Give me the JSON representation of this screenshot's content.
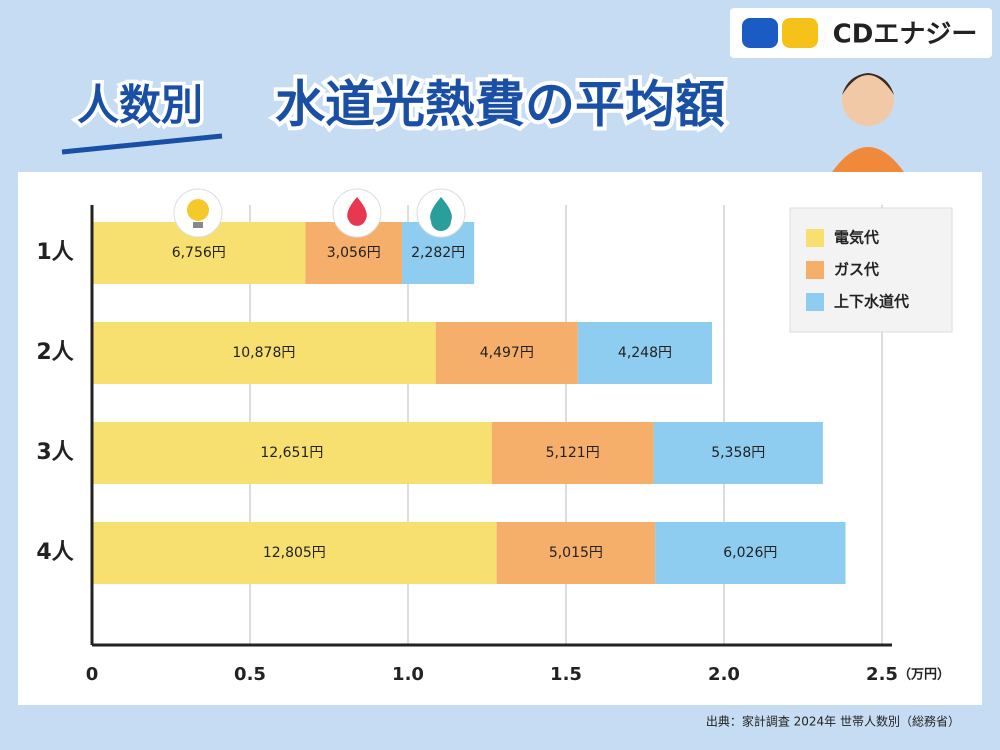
{
  "brand": "CDエナジー",
  "chart_data": {
    "type": "stacked_barh",
    "title": "人数別",
    "subtitle": "水道光熱費の平均額",
    "x_unit_label": "（万円）",
    "source": "出典：家計調査 2024年 世帯人数別（総務省）",
    "categories": [
      "1人",
      "2人",
      "3人",
      "4人"
    ],
    "series": [
      {
        "name": "電気代",
        "color": "#f7e070",
        "values": [
          0.6756,
          1.0878,
          1.2651,
          1.2805
        ],
        "value_labels": [
          "6,756円",
          "10,878円",
          "12,651円",
          "12,805円"
        ]
      },
      {
        "name": "ガス代",
        "color": "#f6ae6b",
        "values": [
          0.3056,
          0.4497,
          0.5121,
          0.5015
        ],
        "value_labels": [
          "3,056円",
          "4,497円",
          "5,121円",
          "5,015円"
        ]
      },
      {
        "name": "上下水道代",
        "color": "#8ecdf0",
        "values": [
          0.2282,
          0.4248,
          0.5358,
          0.6026
        ],
        "value_labels": [
          "2,282円",
          "4,248円",
          "5,358円",
          "6,026円"
        ]
      }
    ],
    "xlim": [
      0,
      2.5
    ],
    "xticks": [
      0,
      0.5,
      {
        "value": 1,
        "label": "1.0"
      },
      1.5,
      {
        "value": 2,
        "label": "2.0"
      },
      2.5
    ],
    "grid": true
  }
}
